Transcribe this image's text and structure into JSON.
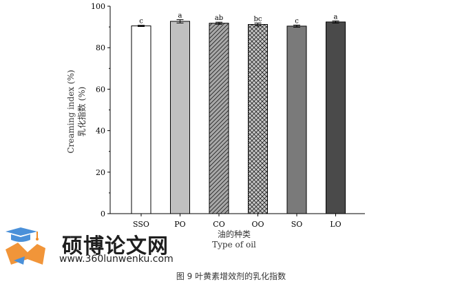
{
  "chart_data": {
    "type": "bar",
    "categories": [
      "SSO",
      "PO",
      "CO",
      "OO",
      "SO",
      "LO"
    ],
    "values": [
      90.5,
      92.7,
      91.8,
      91.2,
      90.4,
      92.4
    ],
    "errors": [
      0.3,
      0.8,
      0.5,
      0.7,
      0.5,
      0.5
    ],
    "significance": [
      "c",
      "a",
      "ab",
      "bc",
      "c",
      "a"
    ],
    "bar_colors": [
      "#ffffff",
      "#c0c0c0",
      "#a8a8a8",
      "#c8c8c8",
      "#7a7a7a",
      "#4a4a4a"
    ],
    "bar_patterns": [
      "none",
      "none",
      "diagonal",
      "crosshatch",
      "none",
      "none"
    ],
    "ylim": [
      0,
      100
    ],
    "yticks": [
      0,
      20,
      40,
      60,
      80,
      100
    ],
    "ylabel_en": "Creaming index (%)",
    "ylabel_cn": "乳化指数 (%)",
    "xlabel_cn": "油的种类",
    "xlabel_en": "Type of oil"
  },
  "watermark": {
    "site_name": "硕博论文网",
    "url": "www.360lunwenku.com",
    "colors": [
      "#4a90d9",
      "#f08a24"
    ]
  },
  "caption": "图 9 叶黄素增效剂的乳化指数"
}
